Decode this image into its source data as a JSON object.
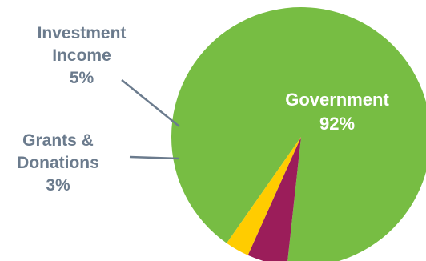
{
  "chart_data": {
    "type": "pie",
    "slices": [
      {
        "label_lines": [
          "Government"
        ],
        "value": 92,
        "value_label": "92%",
        "color": "#77bd43"
      },
      {
        "label_lines": [
          "Investment",
          "Income"
        ],
        "value": 5,
        "value_label": "5%",
        "color": "#9b1d5a"
      },
      {
        "label_lines": [
          "Grants &",
          "Donations"
        ],
        "value": 3,
        "value_label": "3%",
        "color": "#ffcc00"
      }
    ],
    "legend": "none",
    "leader_line_color": "#6b7b8d"
  }
}
